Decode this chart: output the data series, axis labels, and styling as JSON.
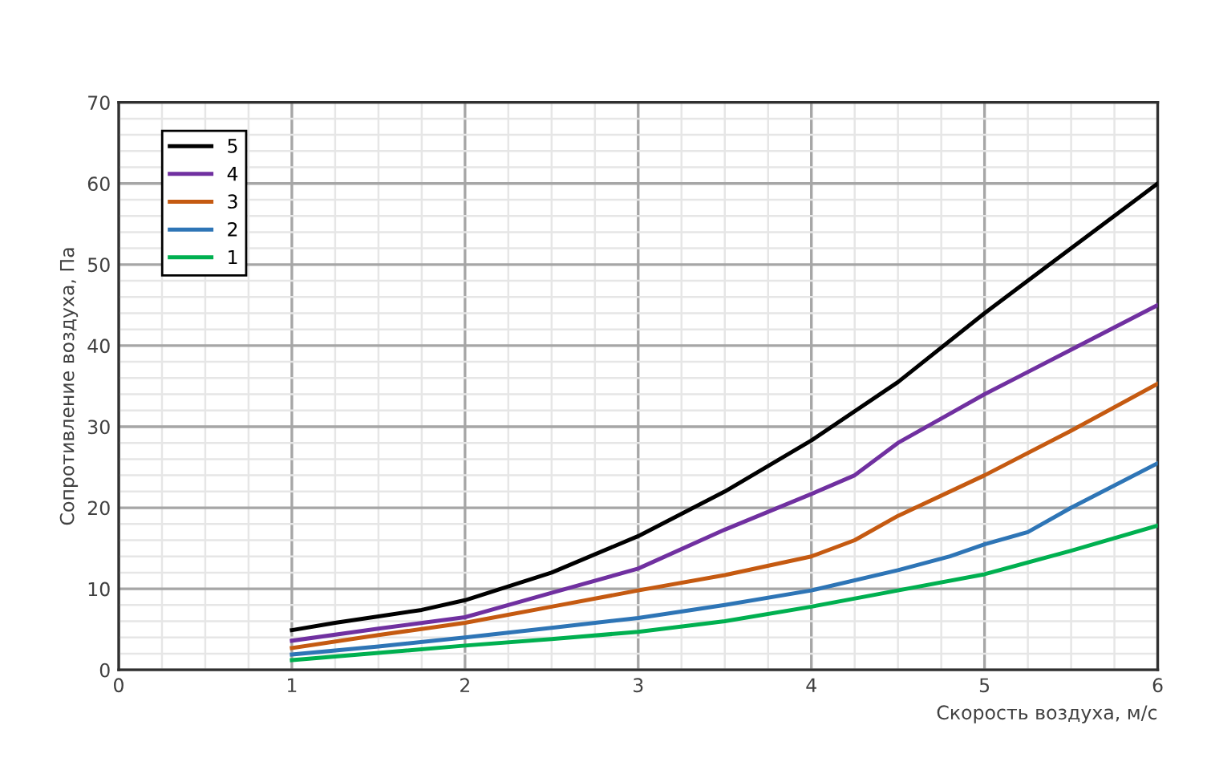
{
  "chart_data": {
    "type": "line",
    "xlabel": "Скорость воздуха, м/с",
    "ylabel": "Сопротивление воздуха, Па",
    "xlim": [
      0,
      6
    ],
    "ylim": [
      0,
      70
    ],
    "xticks": [
      0,
      1,
      2,
      3,
      4,
      5,
      6
    ],
    "yticks": [
      0,
      10,
      20,
      30,
      40,
      50,
      60,
      70
    ],
    "grid": true,
    "legend": "top left",
    "marker": "none",
    "line_style": "solid",
    "series": [
      {
        "name": "5",
        "color": "#000000",
        "x": [
          1,
          1.25,
          1.5,
          1.75,
          2,
          2.5,
          3,
          3.5,
          4,
          4.5,
          5,
          5.5,
          6
        ],
        "values": [
          4.9,
          5.8,
          6.6,
          7.4,
          8.6,
          12,
          16.5,
          22,
          28.3,
          35.5,
          44,
          52,
          60
        ]
      },
      {
        "name": "4",
        "color": "#7030a0",
        "x": [
          1,
          1.5,
          2,
          2.5,
          3,
          3.5,
          4,
          4.25,
          4.5,
          5,
          5.5,
          6
        ],
        "values": [
          3.6,
          5.1,
          6.5,
          9.5,
          12.5,
          17.3,
          21.7,
          24,
          28,
          34,
          39.5,
          45
        ]
      },
      {
        "name": "3",
        "color": "#c55a11",
        "x": [
          1,
          1.5,
          2,
          2.5,
          3,
          3.5,
          4,
          4.25,
          4.5,
          5,
          5.5,
          6
        ],
        "values": [
          2.7,
          4.3,
          5.8,
          7.8,
          9.8,
          11.7,
          14,
          16,
          19,
          24,
          29.5,
          35.3
        ]
      },
      {
        "name": "2",
        "color": "#2e75b6",
        "x": [
          1,
          1.5,
          2,
          2.5,
          3,
          3.5,
          4,
          4.5,
          4.8,
          5,
          5.25,
          5.5,
          6
        ],
        "values": [
          1.9,
          2.9,
          4,
          5.2,
          6.4,
          8,
          9.8,
          12.3,
          14,
          15.5,
          17,
          20,
          25.5
        ]
      },
      {
        "name": "1",
        "color": "#00b050",
        "x": [
          1,
          1.5,
          2,
          2.5,
          3,
          3.5,
          4,
          4.5,
          5,
          5.5,
          6
        ],
        "values": [
          1.2,
          2.1,
          3,
          3.8,
          4.7,
          6,
          7.8,
          9.8,
          11.8,
          14.7,
          17.8
        ]
      }
    ]
  }
}
